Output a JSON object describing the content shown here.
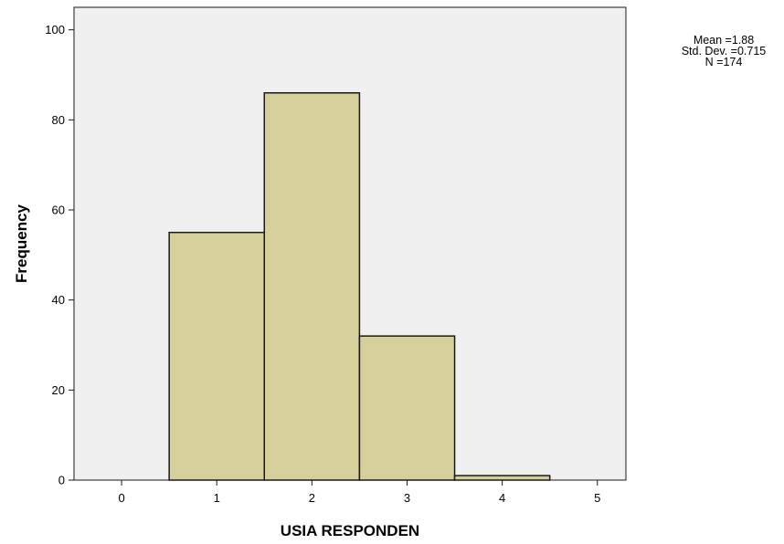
{
  "chart_data": {
    "type": "bar",
    "subtype": "histogram",
    "bins": [
      {
        "center": 1,
        "start": 0.5,
        "end": 1.5,
        "value": 55
      },
      {
        "center": 2,
        "start": 1.5,
        "end": 2.5,
        "value": 86
      },
      {
        "center": 3,
        "start": 2.5,
        "end": 3.5,
        "value": 32
      },
      {
        "center": 4,
        "start": 3.5,
        "end": 4.5,
        "value": 1
      }
    ],
    "xticks": [
      0,
      1,
      2,
      3,
      4,
      5
    ],
    "yticks": [
      0,
      20,
      40,
      60,
      80,
      100
    ],
    "xlabel": "USIA RESPONDEN",
    "ylabel": "Frequency",
    "xlim": [
      -0.5,
      5.3
    ],
    "ylim": [
      0,
      105
    ],
    "grid": false,
    "colors": {
      "bar_fill": "#d5d09b",
      "bar_stroke": "#1a1a1a",
      "plot_background": "#f0f0f0"
    },
    "stats": {
      "mean": "Mean =1.88",
      "std_dev": "Std. Dev. =0.715",
      "n": "N =174"
    }
  }
}
